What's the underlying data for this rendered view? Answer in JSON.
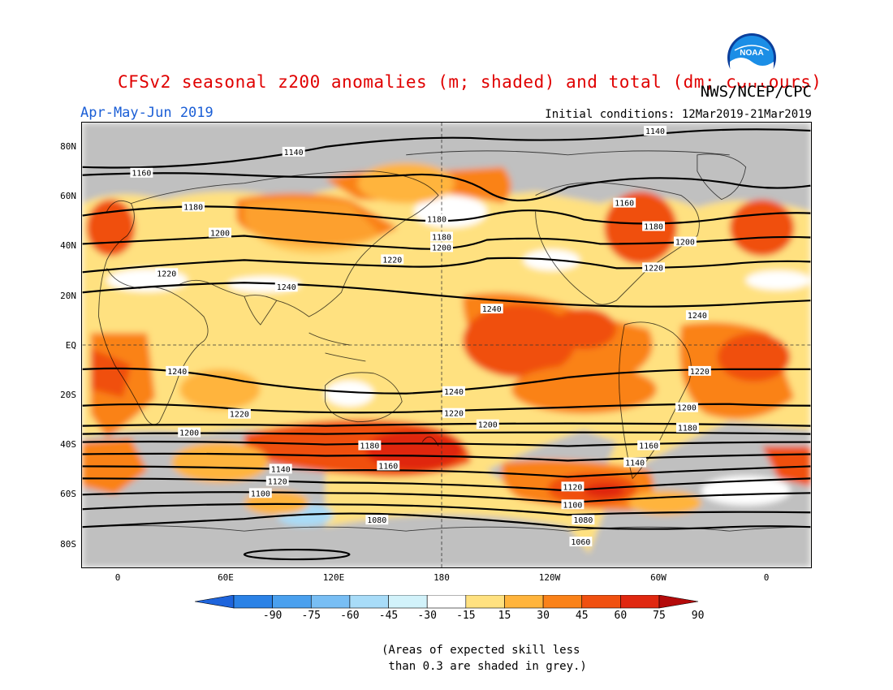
{
  "header": {
    "title": "CFSv2 seasonal z200 anomalies (m; shaded) and total (dm; contours)",
    "agency": "NWS/NCEP/CPC",
    "period": "Apr-May-Jun 2019",
    "initial_conditions": "Initial conditions: 12Mar2019-21Mar2019",
    "logo_text": "NOAA"
  },
  "map": {
    "lat_labels": [
      "80N",
      "60N",
      "40N",
      "20N",
      "EQ",
      "20S",
      "40S",
      "60S",
      "80S"
    ],
    "lon_labels": [
      "0",
      "60E",
      "120E",
      "180",
      "120W",
      "60W",
      "0"
    ],
    "contour_labels": [
      "1140",
      "1140",
      "1160",
      "1160",
      "1180",
      "1180",
      "1180",
      "1180",
      "1200",
      "1200",
      "1200",
      "1220",
      "1220",
      "1220",
      "1240",
      "1240",
      "1240",
      "1240",
      "1240",
      "1220",
      "1220",
      "1220",
      "1200",
      "1200",
      "1200",
      "1180",
      "1180",
      "1160",
      "1160",
      "1140",
      "1140",
      "1120",
      "1120",
      "1100",
      "1100",
      "1080",
      "1080",
      "1060"
    ]
  },
  "colorbar": {
    "colors": [
      "#1e64dc",
      "#2b82e6",
      "#4aa0ee",
      "#78bef4",
      "#a8dcf8",
      "#d2f2fa",
      "#ffffff",
      "#ffe180",
      "#ffb43c",
      "#fa8219",
      "#f05010",
      "#e02810",
      "#b40a0a"
    ],
    "tick_labels": [
      "-90",
      "-75",
      "-60",
      "-45",
      "-30",
      "-15",
      "15",
      "30",
      "45",
      "60",
      "75",
      "90"
    ]
  },
  "footnote": "(Areas of expected skill less\n than 0.3 are shaded in grey.)"
}
